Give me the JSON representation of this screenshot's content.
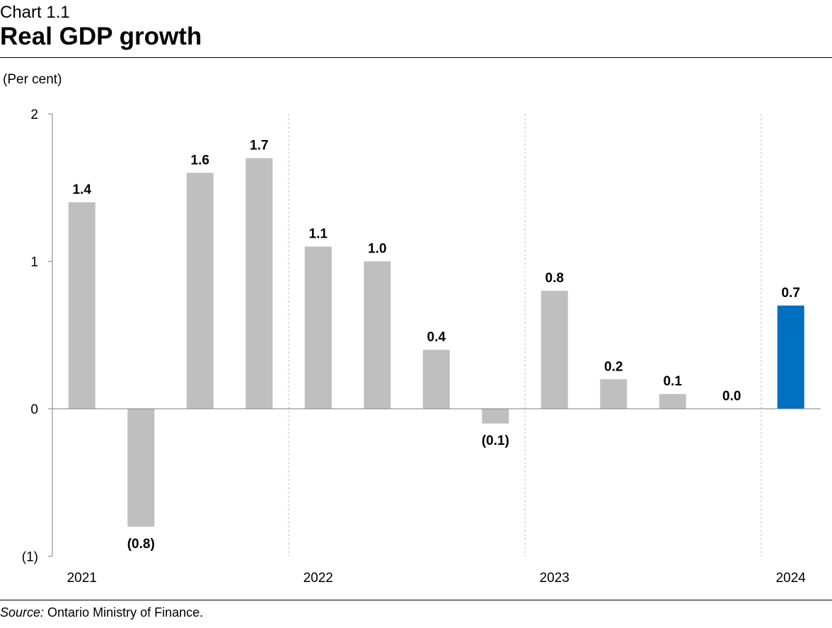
{
  "header": {
    "chart_number": "Chart 1.1",
    "title": "Real GDP growth"
  },
  "footer": {
    "source_label": "Source:",
    "source_text": " Ontario Ministry of Finance."
  },
  "colors": {
    "bar_default": "#bfbfbf",
    "bar_highlight": "#0070c0"
  },
  "chart_data": {
    "type": "bar",
    "title": "Real GDP growth",
    "ylabel": "(Per cent)",
    "xlabel": "",
    "ylim": [
      -1,
      2
    ],
    "y_ticks": [
      2,
      1,
      0,
      -1
    ],
    "y_tick_labels": [
      "2",
      "1",
      "0",
      "(1)"
    ],
    "year_labels": [
      "2021",
      "2022",
      "2023",
      "2024"
    ],
    "values": [
      1.4,
      -0.8,
      1.6,
      1.7,
      1.1,
      1.0,
      0.4,
      -0.1,
      0.8,
      0.2,
      0.1,
      0.0,
      0.7
    ],
    "value_labels": [
      "1.4",
      "(0.8)",
      "1.6",
      "1.7",
      "1.1",
      "1.0",
      "0.4",
      "(0.1)",
      "0.8",
      "0.2",
      "0.1",
      "0.0",
      "0.7"
    ],
    "highlight_index": 12,
    "grid": "dashed vertical separators between years"
  }
}
